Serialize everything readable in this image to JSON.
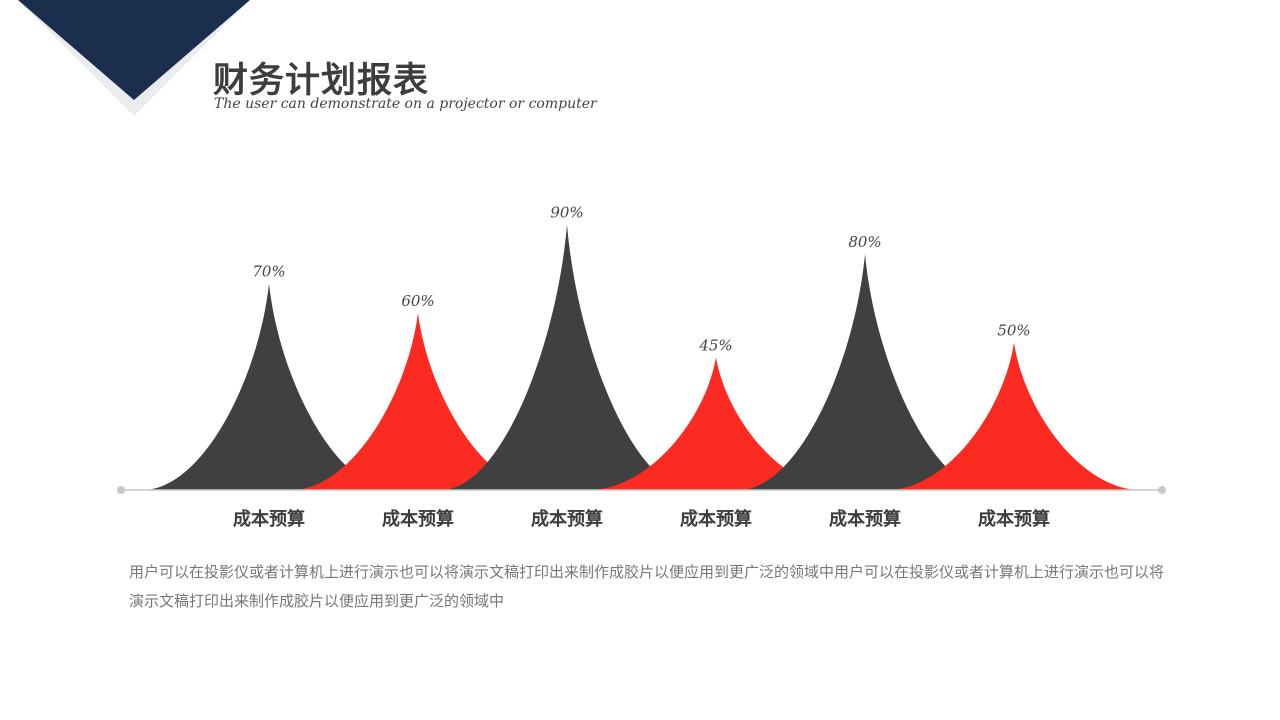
{
  "header": {
    "title": "财务计划报表",
    "subtitle": "The user can demonstrate on a projector or computer"
  },
  "colors": {
    "dark": "#404040",
    "red": "#fc2b22",
    "navy": "#1c2e4e",
    "axis": "#c8c8c8"
  },
  "chart_data": {
    "type": "area",
    "categories": [
      "成本预算",
      "成本预算",
      "成本预算",
      "成本预算",
      "成本预算",
      "成本预算"
    ],
    "values": [
      70,
      60,
      90,
      45,
      80,
      50
    ],
    "data_labels": [
      "70%",
      "60%",
      "90%",
      "45%",
      "80%",
      "50%"
    ],
    "series_colors": [
      "dark",
      "red",
      "dark",
      "red",
      "dark",
      "red"
    ],
    "ylim": [
      0,
      100
    ],
    "grid": false
  },
  "description": "用户可以在投影仪或者计算机上进行演示也可以将演示文稿打印出来制作成胶片以便应用到更广泛的领域中用户可以在投影仪或者计算机上进行演示也可以将演示文稿打印出来制作成胶片以便应用到更广泛的领域中"
}
